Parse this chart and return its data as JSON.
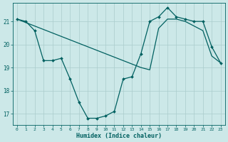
{
  "xlabel": "Humidex (Indice chaleur)",
  "background_color": "#cce8e8",
  "grid_color": "#aacccc",
  "line_color": "#006060",
  "xlim": [
    -0.5,
    23.5
  ],
  "ylim": [
    16.5,
    21.8
  ],
  "yticks": [
    17,
    18,
    19,
    20,
    21
  ],
  "xticks": [
    0,
    1,
    2,
    3,
    4,
    5,
    6,
    7,
    8,
    9,
    10,
    11,
    12,
    13,
    14,
    15,
    16,
    17,
    18,
    19,
    20,
    21,
    22,
    23
  ],
  "line1_x": [
    0,
    1,
    2,
    3,
    4,
    5,
    6,
    7,
    8,
    9,
    10,
    11,
    12,
    13,
    14,
    15,
    16,
    17,
    18,
    19,
    20,
    21,
    22,
    23
  ],
  "line1_y": [
    21.1,
    21.0,
    20.6,
    19.3,
    19.3,
    19.4,
    18.5,
    17.5,
    16.8,
    16.8,
    16.9,
    17.1,
    18.5,
    18.6,
    19.6,
    21.0,
    21.2,
    21.6,
    21.2,
    21.1,
    21.0,
    21.0,
    19.9,
    19.2
  ],
  "line2_x": [
    0,
    1,
    2,
    3,
    4,
    5,
    6,
    7,
    8,
    9,
    10,
    11,
    12,
    13,
    14,
    15,
    16,
    17,
    18,
    19,
    20,
    21,
    22,
    23
  ],
  "line2_y": [
    21.1,
    20.95,
    20.8,
    20.65,
    20.5,
    20.35,
    20.2,
    20.05,
    19.9,
    19.75,
    19.6,
    19.45,
    19.3,
    19.15,
    19.0,
    18.9,
    20.7,
    21.1,
    21.1,
    21.0,
    20.8,
    20.6,
    19.5,
    19.2
  ]
}
